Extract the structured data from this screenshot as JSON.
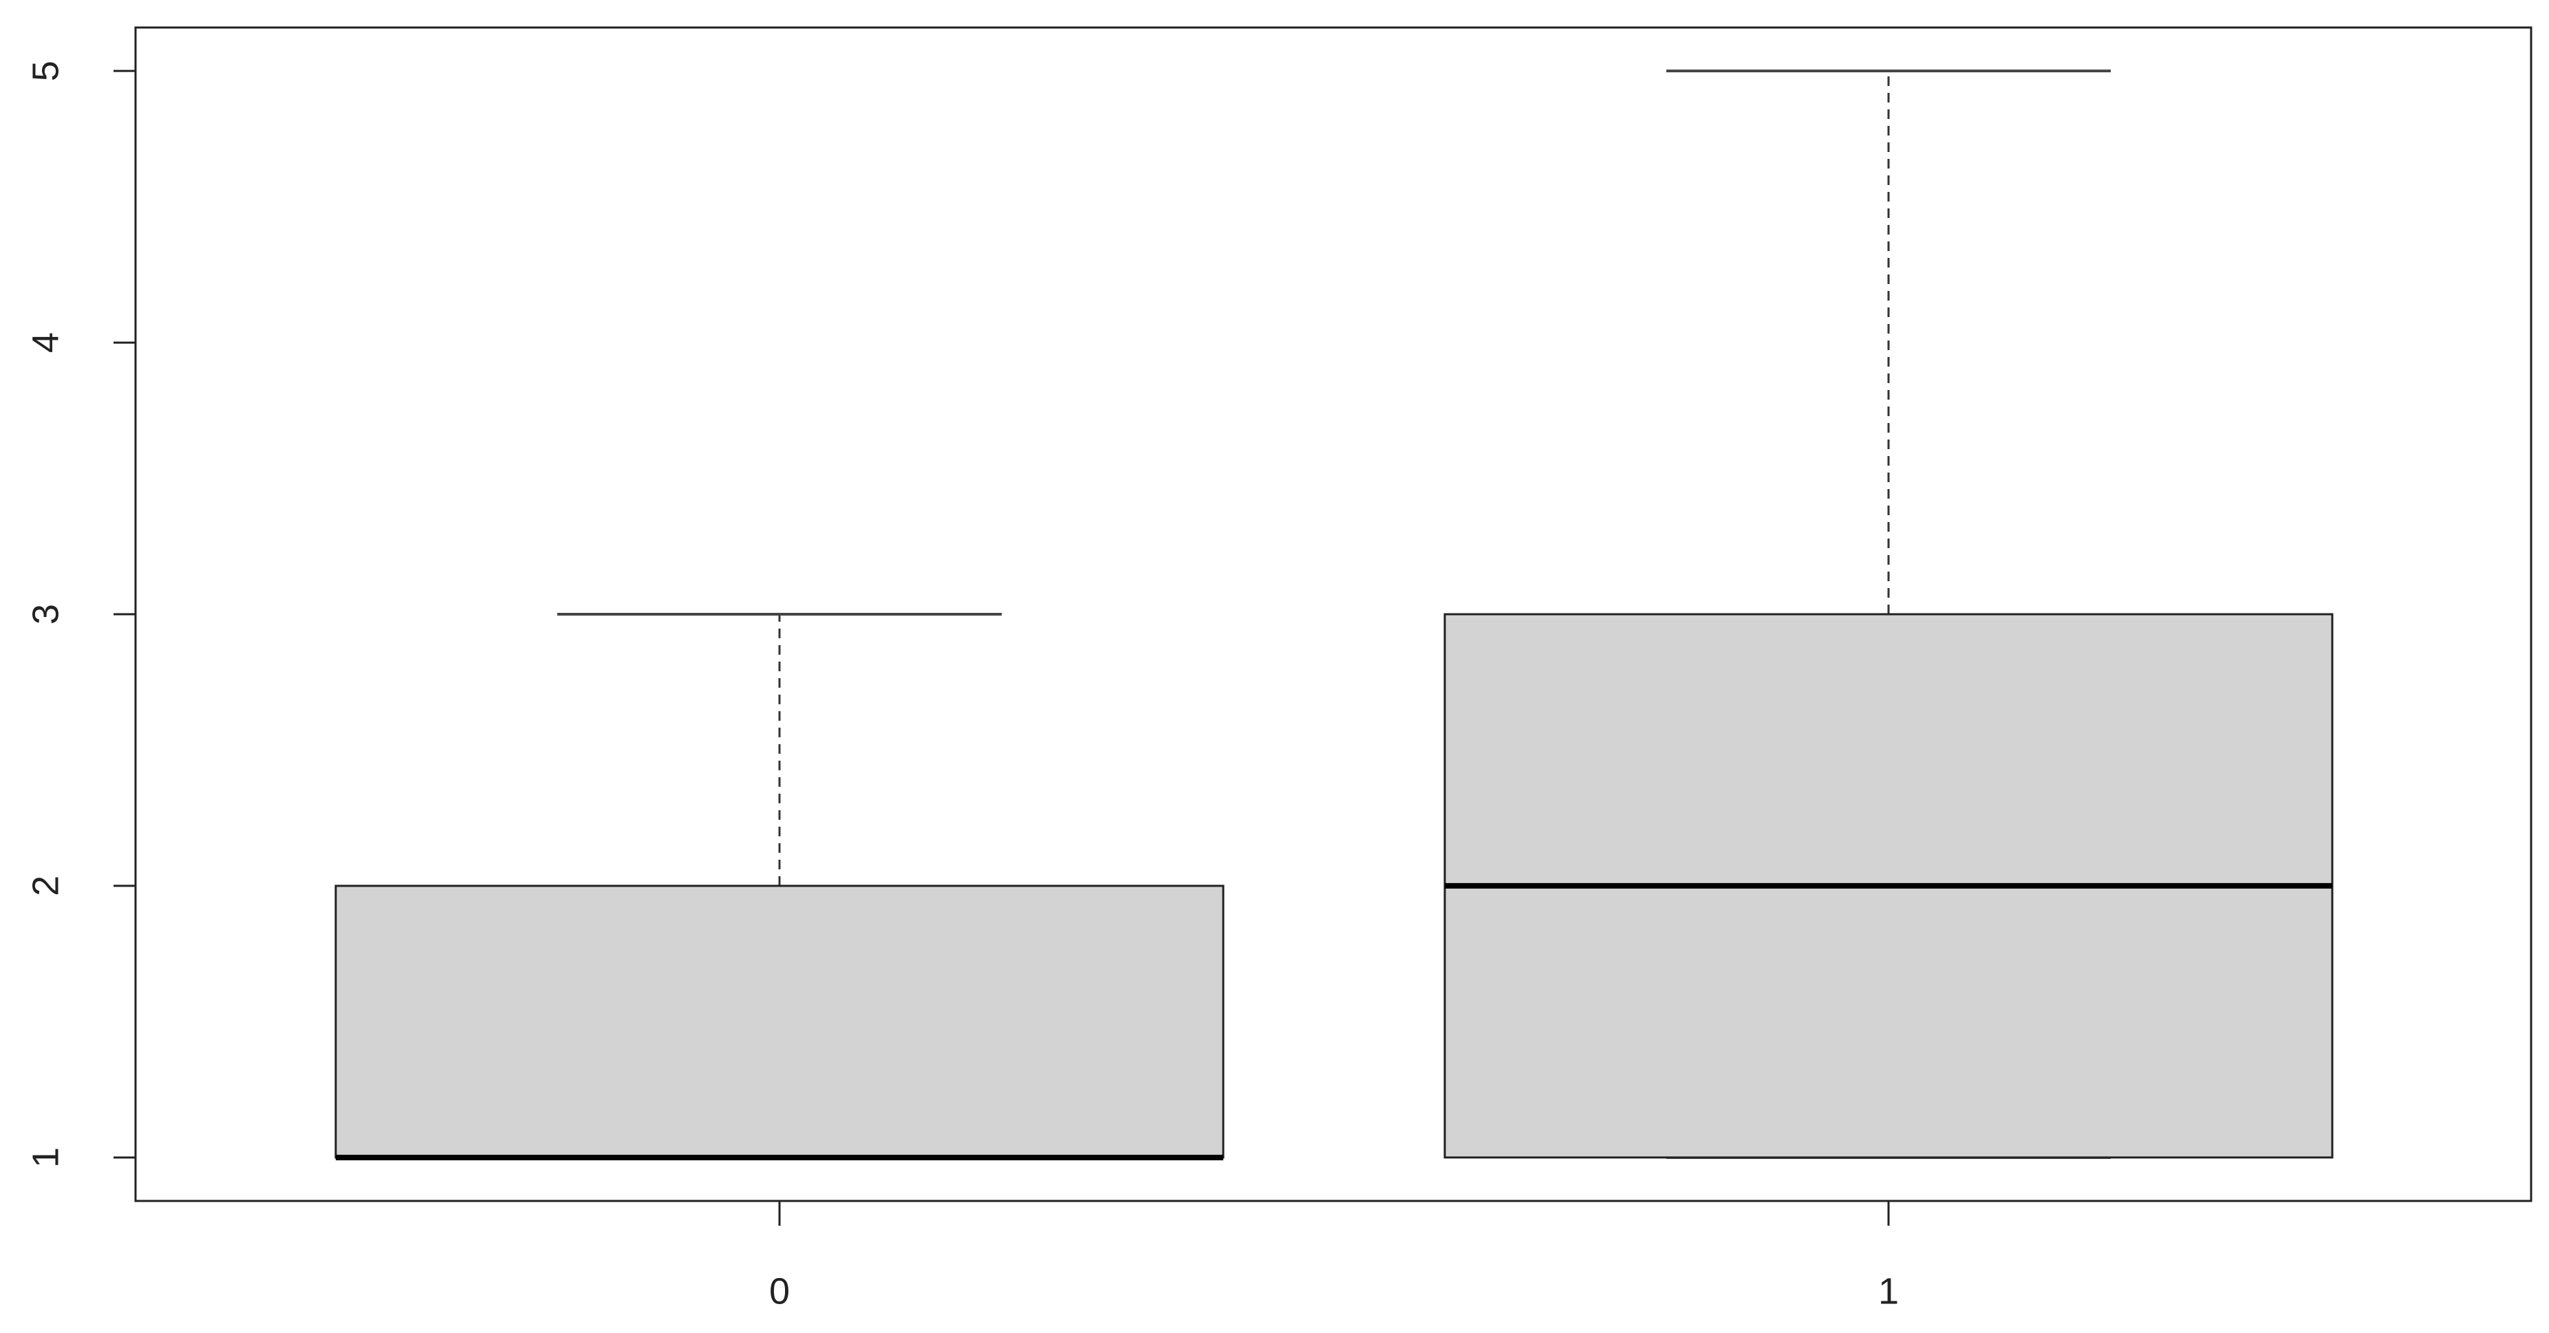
{
  "chart_data": {
    "type": "box",
    "categories": [
      "0",
      "1"
    ],
    "min": [
      1,
      1
    ],
    "q1": [
      1,
      1
    ],
    "median": [
      1,
      2
    ],
    "q3": [
      2,
      3
    ],
    "max": [
      3,
      5
    ],
    "color": "#d3d3d3",
    "ylim": [
      0.84,
      5.16
    ],
    "yticks": [
      1,
      2,
      3,
      4,
      5
    ]
  }
}
